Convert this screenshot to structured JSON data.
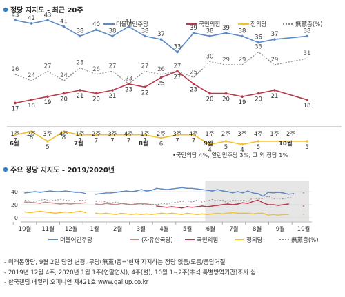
{
  "chart_data": [
    {
      "type": "line",
      "title": "정당 지지도 - 최근 20주",
      "legend": {
        "placement": "top-right"
      },
      "categories": [
        "6월 1주",
        "6월 2주",
        "6월 3주",
        "6월 4주",
        "7월 1주",
        "7월 2주",
        "7월 3주",
        "7월 4주",
        "8월 1주",
        "8월 2주",
        "8월 3주",
        "8월 4주",
        "9월 1주",
        "9월 2주",
        "9월 3주",
        "9월 4주",
        "10월 1주",
        "10월 2주"
      ],
      "x_tick_labels": [
        "1주",
        "2주",
        "3주",
        "4주",
        "1주",
        "2주",
        "3주",
        "4주",
        "1주",
        "2주",
        "3주",
        "4주",
        "1주",
        "2주",
        "3주",
        "4주",
        "1주",
        "2주"
      ],
      "month_labels": [
        {
          "label": "6월",
          "index": 0
        },
        {
          "label": "7월",
          "index": 4
        },
        {
          "label": "8월",
          "index": 8
        },
        {
          "label": "9월",
          "index": 12
        },
        {
          "label": "10월",
          "index": 16
        }
      ],
      "series": [
        {
          "name": "더불어민주당",
          "color": "#5b8ac5",
          "labels": "above",
          "points": [
            [
              0,
              43
            ],
            [
              1,
              42
            ],
            [
              2,
              43
            ],
            [
              3,
              41
            ],
            [
              4,
              38
            ],
            [
              5,
              40
            ],
            [
              6,
              38
            ],
            [
              7,
              41
            ],
            [
              8,
              38
            ],
            [
              9,
              37
            ],
            [
              10,
              33
            ],
            [
              11,
              39
            ],
            [
              12,
              38
            ],
            [
              13,
              39
            ],
            [
              14,
              38
            ],
            [
              15,
              36
            ],
            [
              16,
              37
            ],
            [
              18,
              38
            ]
          ]
        },
        {
          "name": "국민의힘",
          "color": "#b63a4a",
          "labels": "below",
          "points": [
            [
              0,
              17
            ],
            [
              1,
              18
            ],
            [
              2,
              19
            ],
            [
              3,
              20
            ],
            [
              4,
              21
            ],
            [
              5,
              20
            ],
            [
              6,
              21
            ],
            [
              7,
              23
            ],
            [
              8,
              22
            ],
            [
              9,
              25
            ],
            [
              10,
              27
            ],
            [
              11,
              23
            ],
            [
              12,
              20
            ],
            [
              13,
              20
            ],
            [
              14,
              19
            ],
            [
              15,
              20
            ],
            [
              16,
              21
            ],
            [
              18,
              18
            ]
          ]
        },
        {
          "name": "정의당",
          "color": "#f2c12e",
          "labels": "below",
          "points": [
            [
              0,
              7
            ],
            [
              1,
              8
            ],
            [
              2,
              5
            ],
            [
              3,
              8
            ],
            [
              4,
              7
            ],
            [
              5,
              7
            ],
            [
              6,
              7
            ],
            [
              7,
              7
            ],
            [
              8,
              7
            ],
            [
              9,
              6
            ],
            [
              10,
              7
            ],
            [
              11,
              7
            ],
            [
              12,
              4
            ],
            [
              13,
              5
            ],
            [
              14,
              4
            ],
            [
              15,
              5
            ],
            [
              18,
              5
            ]
          ]
        },
        {
          "name": "無黨층(%)",
          "color": "#888888",
          "dashed": true,
          "labels": "above",
          "points": [
            [
              0,
              26
            ],
            [
              1,
              24
            ],
            [
              2,
              27
            ],
            [
              3,
              24
            ],
            [
              4,
              28
            ],
            [
              5,
              26
            ],
            [
              6,
              27
            ],
            [
              7,
              23
            ],
            [
              8,
              27
            ],
            [
              9,
              26
            ],
            [
              10,
              27
            ],
            [
              11,
              25
            ],
            [
              12,
              30
            ],
            [
              13,
              29
            ],
            [
              14,
              29
            ],
            [
              15,
              33
            ],
            [
              16,
              29
            ],
            [
              18,
              31
            ]
          ]
        }
      ],
      "footnote": "•국민의당 4%, 열린민주당 3%, 그 외 정당 1%"
    },
    {
      "type": "line",
      "title": "주요 정당 지지도 - 2019/2020년",
      "y_ticks": [
        0,
        20,
        40
      ],
      "x_month_labels": [
        "10월",
        "11월",
        "12월",
        "1월",
        "2월",
        "3월",
        "4월",
        "5월",
        "6월",
        "7월",
        "8월",
        "9월",
        "10월"
      ],
      "highlight_region_start": "6월",
      "legend": {
        "placement": "bottom"
      },
      "legend_entries": [
        "더불어민주당",
        "(자유한국당)",
        "국민의힘",
        "정의당",
        "無黨층(%)"
      ],
      "series": [
        {
          "name": "더불어민주당",
          "color": "#5b8ac5",
          "values": [
            38,
            39,
            40,
            39,
            40,
            41,
            40,
            40,
            41,
            40,
            39,
            39,
            37,
            null,
            36,
            37,
            38,
            38,
            39,
            40,
            41,
            40,
            41,
            43,
            41,
            42,
            45,
            44,
            43,
            44,
            45,
            46,
            45,
            45,
            44,
            43,
            42,
            41,
            43,
            41,
            40,
            38,
            40,
            38,
            41,
            38,
            37,
            33,
            39,
            38,
            39,
            38,
            36,
            37,
            null,
            38
          ]
        },
        {
          "name": "(자유한국당)",
          "color": "#c98a8a",
          "values": [
            24,
            24,
            23,
            22,
            24,
            23,
            22,
            21,
            22,
            21,
            22,
            22,
            23,
            null,
            21,
            20,
            22,
            21,
            20,
            22,
            21,
            20,
            21,
            22,
            21,
            20,
            null,
            null,
            null,
            null,
            null,
            null,
            null,
            null,
            null,
            null,
            null,
            null,
            null,
            null,
            null,
            null,
            null,
            null,
            null,
            null,
            null,
            null,
            null,
            null,
            null,
            null,
            null,
            null,
            null,
            null
          ]
        },
        {
          "name": "국민의힘",
          "color": "#b63a4a",
          "values": [
            null,
            null,
            null,
            null,
            null,
            null,
            null,
            null,
            null,
            null,
            null,
            null,
            null,
            null,
            null,
            null,
            null,
            null,
            null,
            null,
            null,
            null,
            null,
            null,
            null,
            null,
            18,
            17,
            16,
            17,
            16,
            15,
            17,
            16,
            17,
            18,
            17,
            18,
            19,
            20,
            21,
            20,
            21,
            23,
            22,
            25,
            27,
            23,
            20,
            20,
            19,
            20,
            21,
            null,
            null,
            18
          ]
        },
        {
          "name": "정의당",
          "color": "#f2c12e",
          "values": [
            9,
            8,
            9,
            10,
            9,
            8,
            7,
            8,
            9,
            8,
            9,
            10,
            8,
            null,
            7,
            6,
            7,
            6,
            5,
            7,
            6,
            5,
            6,
            5,
            6,
            5,
            6,
            7,
            6,
            7,
            6,
            5,
            7,
            6,
            5,
            6,
            5,
            6,
            7,
            6,
            7,
            8,
            7,
            7,
            7,
            6,
            7,
            7,
            4,
            5,
            4,
            5,
            5,
            null,
            null,
            5
          ]
        },
        {
          "name": "無黨층(%)",
          "color": "#888888",
          "dashed": true,
          "values": [
            27,
            26,
            25,
            27,
            28,
            26,
            27,
            28,
            27,
            26,
            25,
            27,
            26,
            null,
            25,
            26,
            24,
            23,
            24,
            22,
            21,
            20,
            22,
            21,
            19,
            21,
            20,
            22,
            21,
            23,
            24,
            25,
            26,
            24,
            27,
            24,
            26,
            28,
            26,
            27,
            23,
            27,
            26,
            27,
            25,
            30,
            29,
            29,
            33,
            29,
            30,
            29,
            31,
            30,
            null,
            31
          ]
        }
      ]
    }
  ],
  "notes": [
    "- 미래통합당, 9월 2일 당명 변경. 무당(無黨)층='현재 지지하는 정당 없음/모름/응답거절'",
    "- 2019년 12월 4주, 2020년 1월 1주(연말연시), 4주(설), 10월 1~2주(추석 특별방역기간)조사 쉼",
    "- 한국갤럽 데일리 오피니언 제421호 www.gallup.co.kr"
  ]
}
